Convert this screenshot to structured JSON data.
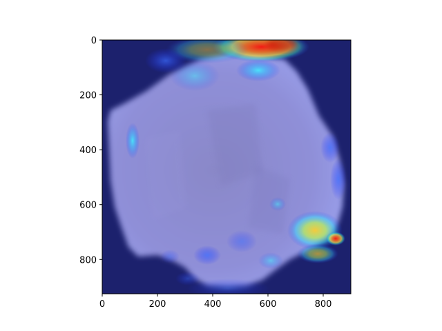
{
  "image": {
    "subject": "rock-heatmap-overlay",
    "overlay_colormap": "jet"
  },
  "axes": {
    "x_ticks": [
      "0",
      "200",
      "400",
      "600",
      "800"
    ],
    "y_ticks": [
      "0",
      "200",
      "400",
      "600",
      "800"
    ],
    "x_range": [
      0,
      900
    ],
    "y_range": [
      0,
      925
    ],
    "y_inverted": true
  },
  "colors": {
    "background": "#1a1f66",
    "rock": "#8f8fd6",
    "hot": "#ff2a1a",
    "warm": "#ffe34a",
    "cool": "#38e0ff"
  }
}
